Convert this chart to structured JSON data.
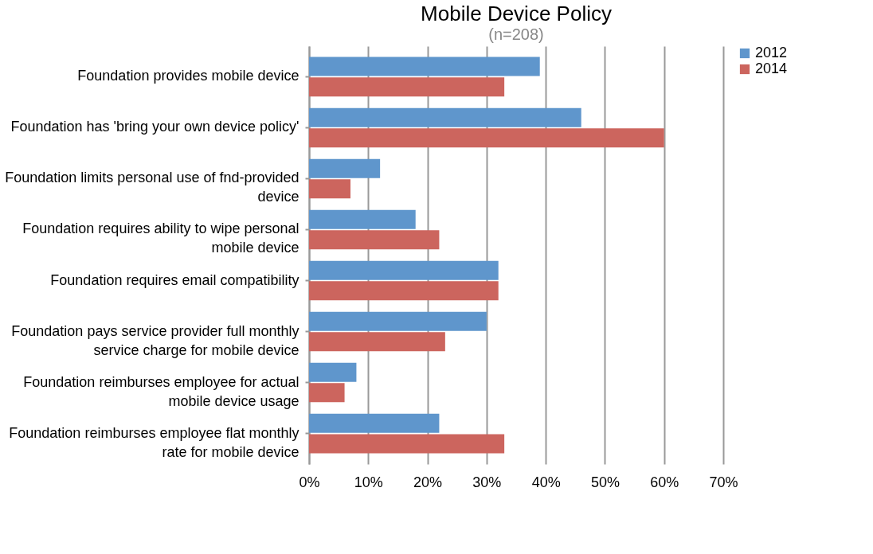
{
  "chart_data": {
    "type": "bar",
    "orientation": "horizontal",
    "title": "Mobile Device Policy",
    "subtitle": "(n=208)",
    "categories": [
      "Foundation provides mobile device",
      "Foundation has 'bring your own device policy'",
      "Foundation limits personal use of fnd-provided device",
      "Foundation requires ability to wipe personal mobile device",
      "Foundation requires email compatibility",
      "Foundation pays service provider full monthly service charge for mobile device",
      "Foundation reimburses employee for actual mobile device usage",
      "Foundation reimburses employee flat monthly rate for mobile device"
    ],
    "series": [
      {
        "name": "2012",
        "color": "#5f96cc",
        "values": [
          39,
          46,
          12,
          18,
          32,
          30,
          8,
          22
        ]
      },
      {
        "name": "2014",
        "color": "#cc655e",
        "values": [
          33,
          60,
          7,
          22,
          32,
          23,
          6,
          33
        ]
      }
    ],
    "xlim": [
      0,
      70
    ],
    "xticks": [
      {
        "value": 0,
        "label": "0%"
      },
      {
        "value": 10,
        "label": "10%"
      },
      {
        "value": 20,
        "label": "20%"
      },
      {
        "value": 30,
        "label": "30%"
      },
      {
        "value": 40,
        "label": "40%"
      },
      {
        "value": 50,
        "label": "50%"
      },
      {
        "value": 60,
        "label": "60%"
      },
      {
        "value": 70,
        "label": "70%"
      }
    ],
    "grid": "x",
    "legend": "right"
  }
}
